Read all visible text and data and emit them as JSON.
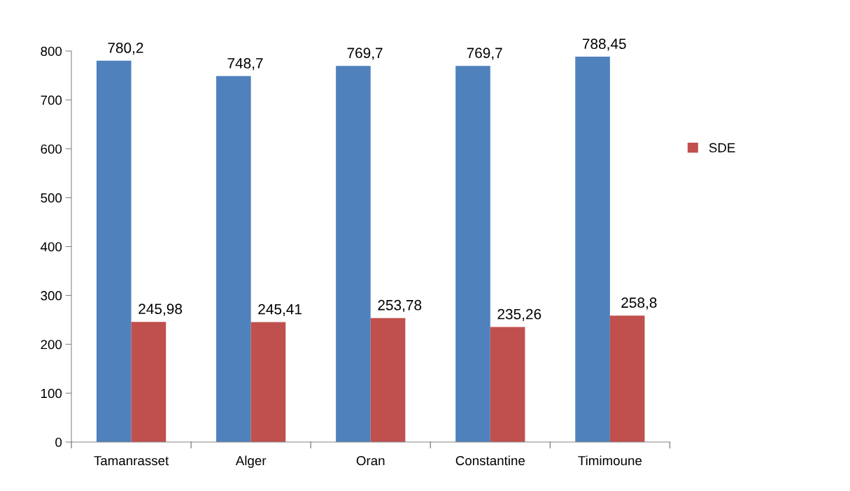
{
  "chart_data": {
    "type": "bar",
    "categories": [
      "Tamanrasset",
      "Alger",
      "Oran",
      "Constantine",
      "Timimoune"
    ],
    "series": [
      {
        "color": "#4f81bd",
        "values": [
          780.2,
          748.7,
          769.7,
          769.7,
          788.45
        ],
        "value_labels": [
          "780,2",
          "748,7",
          "769,7",
          "769,7",
          "788,45"
        ]
      },
      {
        "name": "SDE",
        "color": "#c0504d",
        "values": [
          245.98,
          245.41,
          253.78,
          235.26,
          258.8
        ],
        "value_labels": [
          "245,98",
          "245,41",
          "253,78",
          "235,26",
          "258,8"
        ]
      }
    ],
    "ylim": [
      0,
      800
    ],
    "yticks": [
      0,
      100,
      200,
      300,
      400,
      500,
      600,
      700,
      800
    ],
    "grid": false,
    "legend": "right"
  }
}
